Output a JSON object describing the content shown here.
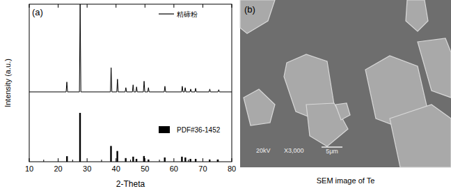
{
  "chart_data": {
    "type": "line",
    "panel_label": "(a)",
    "x_label": "2-Theta",
    "y_label": "Intensity (a.u.)",
    "xlim": [
      10,
      80
    ],
    "xticks": [
      10,
      20,
      30,
      40,
      50,
      60,
      70,
      80
    ],
    "ylim": [
      0,
      100
    ],
    "yticks": [],
    "tick_labels": "x",
    "legend": "upper right",
    "series": [
      {
        "name": "精碲粉",
        "color": "#000000",
        "type": "line",
        "x": [
          10,
          22.75,
          23.0,
          23.25,
          27.35,
          27.6,
          27.85,
          38.05,
          38.3,
          38.55,
          40.25,
          40.5,
          40.75,
          43.15,
          43.4,
          43.65,
          45.65,
          45.9,
          46.15,
          46.85,
          47.1,
          47.35,
          49.45,
          49.7,
          49.95,
          50.95,
          51.2,
          51.45,
          56.65,
          56.9,
          57.15,
          62.65,
          62.9,
          63.15,
          63.65,
          63.9,
          64.15,
          65.55,
          65.8,
          66.05,
          67.25,
          67.5,
          67.75,
          72.15,
          72.4,
          72.65,
          75.25,
          75.5,
          75.75,
          80
        ],
        "values": [
          44.3,
          44.3,
          50.6,
          44.3,
          44.3,
          100,
          44.3,
          44.3,
          59.7,
          44.3,
          44.3,
          52.4,
          44.3,
          44.3,
          47.0,
          44.3,
          44.3,
          48.8,
          44.3,
          44.3,
          47.5,
          44.3,
          44.3,
          51.1,
          44.3,
          44.3,
          47.0,
          44.3,
          44.3,
          47.9,
          44.3,
          44.3,
          47.9,
          44.3,
          44.3,
          47.0,
          44.3,
          44.3,
          46.1,
          44.3,
          44.3,
          46.6,
          44.3,
          44.3,
          46.1,
          44.3,
          44.3,
          45.7,
          44.3,
          44.3
        ]
      },
      {
        "name": "PDF#36-1452",
        "color": "#000000",
        "type": "bar",
        "x": [
          23.05,
          27.56,
          38.26,
          40.45,
          43.35,
          45.93,
          47.06,
          49.65,
          51.21,
          56.84,
          62.78,
          63.96,
          65.71,
          67.52,
          72.35,
          75.2
        ],
        "values": [
          3.5,
          31,
          10,
          6.8,
          2.3,
          3.2,
          1.8,
          3.6,
          1.4,
          2.7,
          3.2,
          2.7,
          1.8,
          1.8,
          1.4,
          1.4
        ]
      }
    ]
  },
  "sem_panel": {
    "label": "(b)",
    "caption": "SEM image of Te",
    "voltage": "20kV",
    "magnification": "X3,000",
    "scale_bar": "5μm"
  }
}
